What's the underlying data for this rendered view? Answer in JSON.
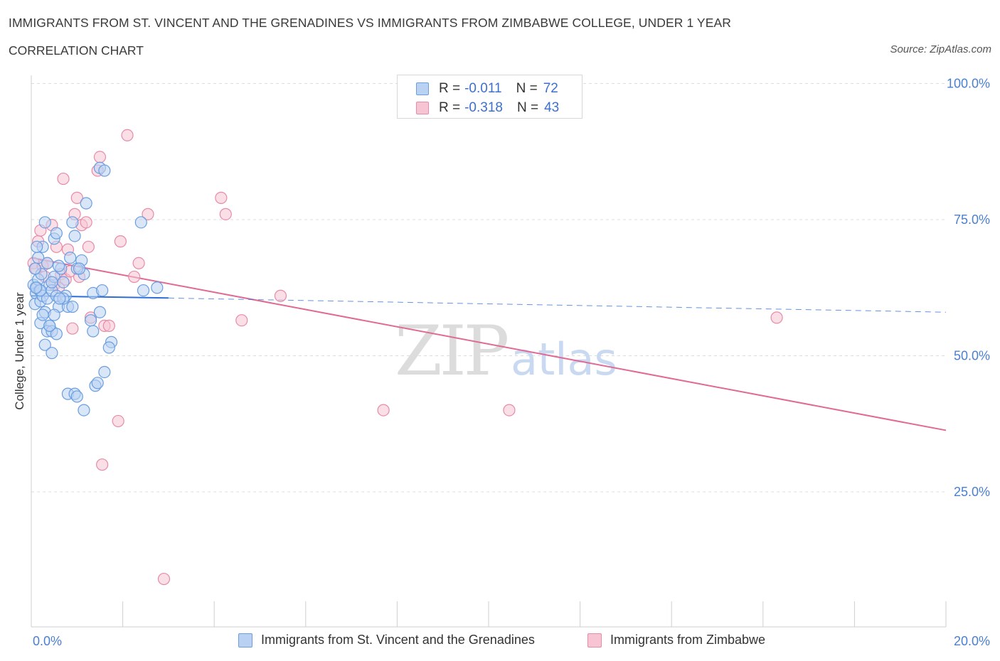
{
  "header": {
    "title": "IMMIGRANTS FROM ST. VINCENT AND THE GRENADINES VS IMMIGRANTS FROM ZIMBABWE COLLEGE, UNDER 1 YEAR",
    "subtitle": "CORRELATION CHART",
    "source": "Source: ZipAtlas.com"
  },
  "legend": {
    "series1": {
      "r_label": "R =",
      "r_value": "-0.011",
      "n_label": "N =",
      "n_value": "72"
    },
    "series2": {
      "r_label": "R =",
      "r_value": "-0.318",
      "n_label": "N =",
      "n_value": "43"
    }
  },
  "watermark": {
    "zip": "ZIP",
    "atlas": "atlas"
  },
  "colors": {
    "series1_fill": "#b9d2f3",
    "series1_stroke": "#6a9ee0",
    "series1_line": "#2e6fd6",
    "series2_fill": "#f6c4d3",
    "series2_stroke": "#e88aa8",
    "series2_line": "#e06a94",
    "axis_label": "#4a7fd1",
    "grid": "#dcdcdc"
  },
  "chart_data": {
    "type": "scatter",
    "title": "IMMIGRANTS FROM ST. VINCENT AND THE GRENADINES VS IMMIGRANTS FROM ZIMBABWE COLLEGE, UNDER 1 YEAR",
    "xlabel": "",
    "ylabel": "College, Under 1 year",
    "xlim": [
      0,
      20
    ],
    "ylim": [
      0,
      100
    ],
    "x_tick_labels": [
      "0.0%",
      "20.0%"
    ],
    "y_tick_labels": [
      "100.0%",
      "75.0%",
      "50.0%",
      "25.0%"
    ],
    "y_ticks": [
      100,
      75,
      50,
      25
    ],
    "series": [
      {
        "name": "Immigrants from St. Vincent and the Grenadines",
        "points": [
          [
            0.05,
            63.0
          ],
          [
            0.1,
            61.5
          ],
          [
            0.12,
            62.5
          ],
          [
            0.15,
            64.0
          ],
          [
            0.08,
            59.5
          ],
          [
            0.18,
            62.0
          ],
          [
            0.2,
            60.0
          ],
          [
            0.22,
            65.0
          ],
          [
            0.25,
            61.0
          ],
          [
            0.3,
            58.0
          ],
          [
            0.35,
            60.5
          ],
          [
            0.4,
            63.0
          ],
          [
            0.45,
            62.0
          ],
          [
            0.5,
            64.5
          ],
          [
            0.55,
            61.0
          ],
          [
            0.6,
            59.0
          ],
          [
            0.65,
            66.0
          ],
          [
            0.7,
            63.5
          ],
          [
            0.75,
            61.0
          ],
          [
            0.8,
            59.0
          ],
          [
            0.15,
            68.0
          ],
          [
            0.25,
            70.0
          ],
          [
            0.35,
            67.0
          ],
          [
            0.5,
            71.5
          ],
          [
            0.55,
            72.5
          ],
          [
            0.3,
            74.5
          ],
          [
            0.9,
            74.5
          ],
          [
            0.95,
            72.0
          ],
          [
            1.1,
            67.5
          ],
          [
            1.2,
            78.0
          ],
          [
            1.15,
            65.0
          ],
          [
            1.0,
            66.0
          ],
          [
            0.85,
            68.0
          ],
          [
            0.45,
            63.5
          ],
          [
            0.4,
            55.5
          ],
          [
            0.2,
            56.0
          ],
          [
            0.25,
            57.5
          ],
          [
            0.35,
            54.5
          ],
          [
            0.45,
            54.5
          ],
          [
            0.5,
            57.5
          ],
          [
            0.3,
            52.0
          ],
          [
            0.45,
            50.5
          ],
          [
            0.55,
            54.0
          ],
          [
            0.9,
            59.0
          ],
          [
            1.35,
            61.5
          ],
          [
            1.55,
            62.0
          ],
          [
            1.5,
            58.0
          ],
          [
            1.3,
            56.5
          ],
          [
            1.35,
            54.5
          ],
          [
            1.75,
            52.5
          ],
          [
            1.7,
            51.5
          ],
          [
            1.6,
            47.0
          ],
          [
            1.4,
            44.5
          ],
          [
            1.45,
            45.0
          ],
          [
            0.8,
            43.0
          ],
          [
            0.95,
            43.0
          ],
          [
            1.0,
            42.5
          ],
          [
            1.15,
            40.0
          ],
          [
            1.5,
            84.5
          ],
          [
            1.6,
            84.0
          ],
          [
            2.4,
            74.5
          ],
          [
            2.75,
            62.5
          ],
          [
            2.45,
            62.0
          ],
          [
            1.05,
            66.0
          ],
          [
            0.7,
            60.5
          ],
          [
            0.62,
            60.5
          ],
          [
            0.4,
            55.5
          ],
          [
            0.2,
            62.0
          ],
          [
            0.1,
            62.5
          ],
          [
            0.08,
            66.0
          ],
          [
            0.12,
            70.0
          ],
          [
            0.6,
            66.5
          ]
        ],
        "trend": {
          "x_start": 0,
          "y_start": 61.0,
          "x_end": 3.0,
          "y_end": 60.6,
          "dash_x_end": 20.0,
          "dash_y_end": 58.0
        }
      },
      {
        "name": "Immigrants from Zimbabwe",
        "points": [
          [
            0.05,
            67.0
          ],
          [
            0.1,
            66.0
          ],
          [
            0.15,
            71.0
          ],
          [
            0.2,
            73.0
          ],
          [
            0.25,
            66.5
          ],
          [
            0.3,
            64.5
          ],
          [
            0.35,
            67.0
          ],
          [
            0.45,
            74.0
          ],
          [
            0.5,
            63.0
          ],
          [
            0.55,
            70.0
          ],
          [
            0.6,
            62.5
          ],
          [
            0.65,
            65.0
          ],
          [
            0.75,
            64.0
          ],
          [
            0.8,
            69.5
          ],
          [
            0.85,
            65.5
          ],
          [
            0.9,
            55.0
          ],
          [
            0.95,
            76.0
          ],
          [
            1.0,
            79.0
          ],
          [
            1.05,
            64.5
          ],
          [
            1.1,
            74.0
          ],
          [
            1.2,
            74.5
          ],
          [
            1.25,
            70.0
          ],
          [
            1.3,
            57.0
          ],
          [
            1.45,
            84.0
          ],
          [
            1.5,
            86.5
          ],
          [
            1.6,
            55.5
          ],
          [
            1.7,
            55.5
          ],
          [
            1.9,
            38.0
          ],
          [
            1.95,
            71.0
          ],
          [
            1.55,
            30.0
          ],
          [
            2.1,
            90.5
          ],
          [
            2.25,
            64.5
          ],
          [
            2.35,
            67.0
          ],
          [
            2.55,
            76.0
          ],
          [
            2.9,
            9.0
          ],
          [
            4.15,
            79.0
          ],
          [
            4.25,
            76.0
          ],
          [
            4.6,
            56.5
          ],
          [
            5.45,
            61.0
          ],
          [
            7.7,
            40.0
          ],
          [
            10.45,
            40.0
          ],
          [
            16.3,
            57.0
          ],
          [
            0.7,
            82.5
          ]
        ],
        "trend": {
          "x_start": 0,
          "y_start": 68.0,
          "x_end": 20.0,
          "y_end": 36.3
        }
      }
    ],
    "legend_position": "top-center",
    "grid": true
  },
  "bottom_legend": {
    "series1_label": "Immigrants from St. Vincent and the Grenadines",
    "series2_label": "Immigrants from Zimbabwe"
  }
}
